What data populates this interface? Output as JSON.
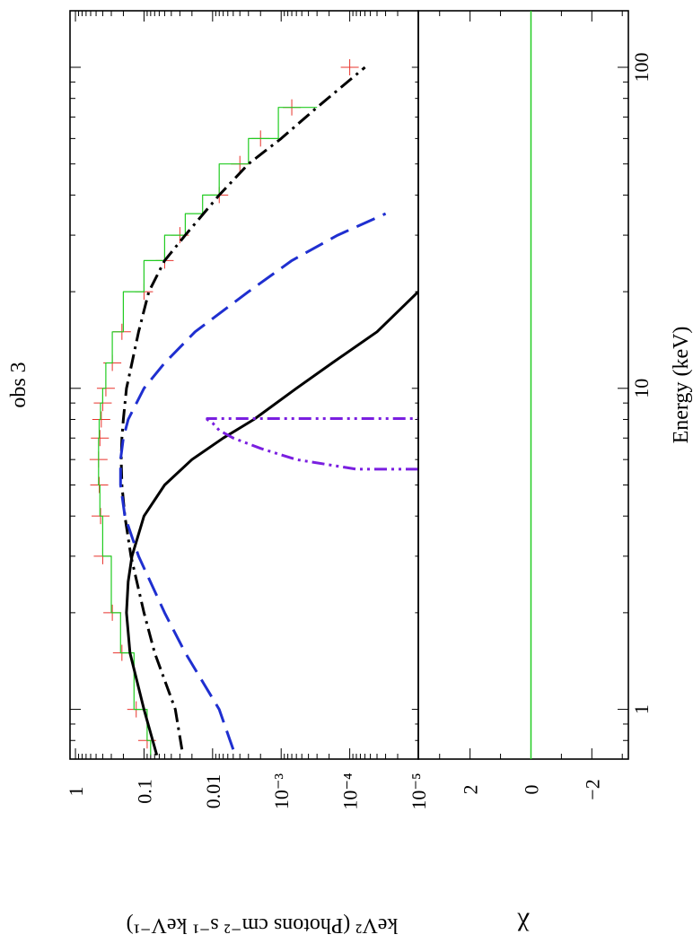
{
  "chart_data": {
    "type": "line",
    "title": "obs 3",
    "xlabel": "Energy (keV)",
    "x_scale": "log",
    "xlim": [
      0.7,
      150
    ],
    "x_tick_labels": [
      "1",
      "10",
      "100"
    ],
    "x_tick_values": [
      1,
      10,
      100
    ],
    "upper_panel": {
      "ylabel": "keV² (Photons cm⁻² s⁻¹ keV⁻¹)",
      "y_scale": "log",
      "ylim": [
        1e-05,
        1.2
      ],
      "y_tick_labels": [
        "1",
        "0.1",
        "0.01",
        "10⁻³",
        "10⁻⁴",
        "10⁻⁵"
      ],
      "y_tick_values": [
        1,
        0.1,
        0.01,
        0.001,
        0.0001,
        1e-05
      ],
      "series": [
        {
          "role": "data",
          "color": "#e8332b",
          "x": [
            0.8,
            1.0,
            1.5,
            2.0,
            3.0,
            4.0,
            5.0,
            6.0,
            7.0,
            8.0,
            9.0,
            10.0,
            12.0,
            15.0,
            20.0,
            25.0,
            30.0,
            40.0,
            50.0,
            60.0,
            75.0,
            100.0
          ],
          "y": [
            0.09,
            0.13,
            0.21,
            0.29,
            0.4,
            0.43,
            0.45,
            0.46,
            0.44,
            0.42,
            0.4,
            0.36,
            0.29,
            0.21,
            0.1,
            0.05,
            0.03,
            0.008,
            0.004,
            0.002,
            0.0007,
            0.0001
          ]
        },
        {
          "role": "total model (histogram)",
          "color": "#22cc22",
          "x": [
            0.72,
            0.8,
            1.0,
            1.5,
            2.0,
            3.0,
            4.0,
            5.0,
            6.0,
            7.0,
            8.0,
            9.0,
            10.0,
            12.0,
            15.0,
            20.0,
            25.0,
            30.0,
            35.0,
            40.0,
            50.0,
            60.0,
            75.0
          ],
          "y": [
            0.08,
            0.09,
            0.14,
            0.22,
            0.3,
            0.4,
            0.44,
            0.46,
            0.46,
            0.45,
            0.43,
            0.4,
            0.36,
            0.29,
            0.2,
            0.1,
            0.05,
            0.025,
            0.014,
            0.008,
            0.003,
            0.0011,
            0.0003
          ]
        },
        {
          "role": "component (solid)",
          "color": "#000000",
          "dash": "solid",
          "x": [
            0.72,
            1.0,
            1.5,
            2.0,
            2.5,
            3.0,
            4.0,
            5.0,
            6.0,
            7.0,
            8.0,
            10.0,
            12.0,
            15.0,
            20.0
          ],
          "y": [
            0.065,
            0.1,
            0.16,
            0.18,
            0.17,
            0.15,
            0.1,
            0.05,
            0.02,
            0.007,
            0.0025,
            0.0006,
            0.00018,
            4e-05,
            1e-05
          ]
        },
        {
          "role": "component (dash-dot)",
          "color": "#000000",
          "dash": "dashdot",
          "x": [
            0.75,
            1.0,
            1.5,
            2.0,
            3.0,
            4.0,
            5.0,
            6.0,
            7.0,
            8.0,
            10.0,
            12.0,
            15.0,
            20.0,
            25.0,
            30.0,
            40.0,
            50.0,
            60.0,
            75.0,
            100.0
          ],
          "y": [
            0.028,
            0.035,
            0.07,
            0.1,
            0.155,
            0.19,
            0.21,
            0.215,
            0.21,
            0.2,
            0.18,
            0.15,
            0.12,
            0.085,
            0.05,
            0.025,
            0.008,
            0.003,
            0.001,
            0.0003,
            6e-05
          ]
        },
        {
          "role": "component (dashed)",
          "color": "#1f2fd0",
          "dash": "dashed",
          "x": [
            0.75,
            1.0,
            1.5,
            2.0,
            3.0,
            4.0,
            5.0,
            6.0,
            7.0,
            8.0,
            10.0,
            12.0,
            15.0,
            20.0,
            25.0,
            30.0,
            35.0
          ],
          "y": [
            0.005,
            0.008,
            0.025,
            0.05,
            0.12,
            0.19,
            0.22,
            0.22,
            0.2,
            0.17,
            0.1,
            0.05,
            0.018,
            0.003,
            0.0007,
            0.00015,
            3e-05
          ]
        },
        {
          "role": "component (dash-dot-dot)",
          "color": "#7a1fe0",
          "dash": "dashdotdot",
          "x": [
            5.6,
            5.6,
            6.0,
            6.5,
            7.0,
            7.4,
            7.8,
            8.0,
            8.05,
            8.05
          ],
          "y": [
            1e-05,
            8e-05,
            0.0006,
            0.002,
            0.005,
            0.008,
            0.01,
            0.012,
            0.012,
            1e-05
          ]
        }
      ]
    },
    "lower_panel": {
      "ylabel": "χ",
      "ylim": [
        -3.2,
        3.7
      ],
      "y_tick_labels": [
        "2",
        "0",
        "−2"
      ],
      "y_tick_values": [
        2,
        0,
        -2
      ],
      "series": [
        {
          "role": "zero line",
          "color": "#22cc22",
          "x": [
            0.7,
            150
          ],
          "y": [
            0,
            0
          ]
        }
      ],
      "residuals_note": ""
    }
  }
}
